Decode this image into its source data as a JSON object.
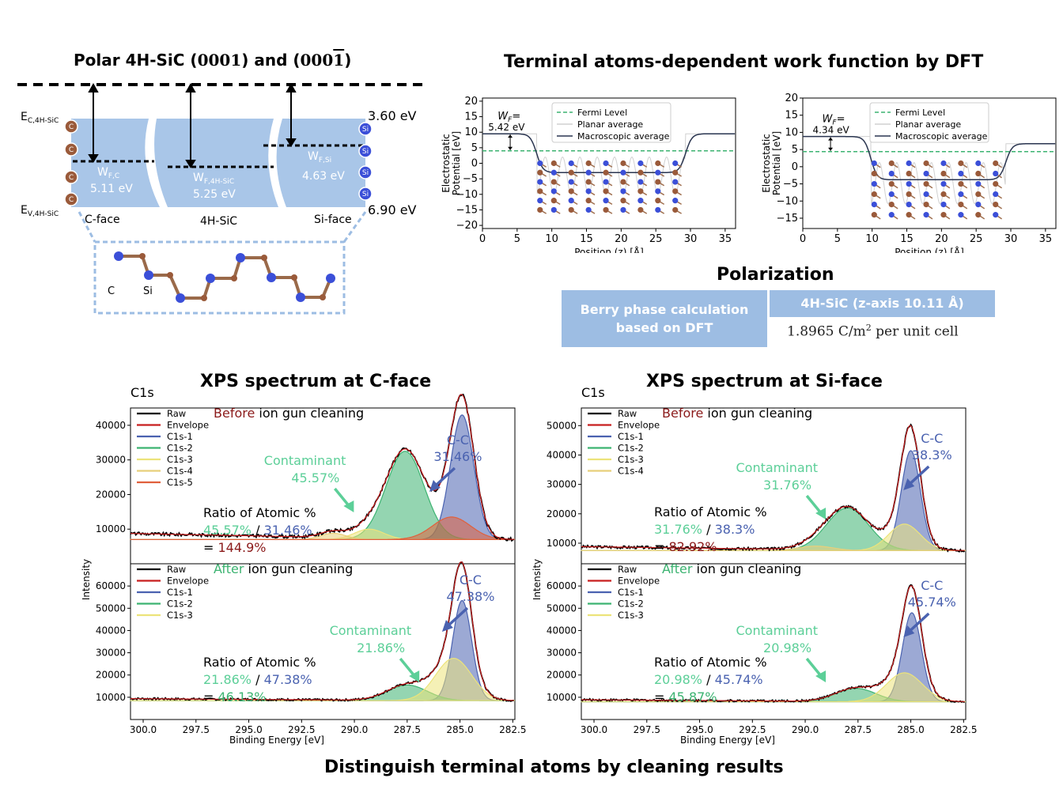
{
  "band": {
    "title_pre": "Polar 4H-SiC (",
    "title_mid": "0001",
    "title_and": ") and (",
    "title_neg": "000",
    "title_bar": "1",
    "title_end": ")",
    "ec": "E",
    "ec_sub": "C,4H-SiC",
    "ev": "E",
    "ev_sub": "V,4H-SiC",
    "top_ev": "3.60 eV",
    "bot_ev": "6.90 eV",
    "wfc": "W",
    "wfc_sub": "F,C",
    "wfc_val": "5.11 eV",
    "wf4h": "W",
    "wf4h_sub": "F,4H-SiC",
    "wf4h_val": "5.25 eV",
    "wfsi": "W",
    "wfsi_sub": "F,Si",
    "wfsi_val": "4.63 eV",
    "cface": "C-face",
    "mid": "4H-SiC",
    "siface": "Si-face",
    "c_atom": "C",
    "si_atom": "Si",
    "atom_c": "C",
    "atom_si": "Si"
  },
  "dft": {
    "title": "Terminal atoms-dependent work function by DFT",
    "ylabel1": "Electrostatic",
    "ylabel2": "Potential [eV]",
    "xlabel": "Position (z) [Å]",
    "legend": [
      "Fermi Level",
      "Planar average",
      "Macroscopic average"
    ],
    "wf_label": "W",
    "wf_sub": "F",
    "wf_eq": "=",
    "left_wf": "5.42 eV",
    "right_wf": "4.34 eV",
    "xticks": [
      "0",
      "5",
      "10",
      "15",
      "20",
      "25",
      "30",
      "35"
    ],
    "left_yticks": [
      "20",
      "15",
      "10",
      "5",
      "0",
      "−5",
      "−10",
      "−15",
      "−20"
    ],
    "right_yticks": [
      "20",
      "15",
      "10",
      "5",
      "0",
      "−5",
      "−10",
      "−15"
    ]
  },
  "polar": {
    "title": "Polarization",
    "left_line1": "Berry phase calculation",
    "left_line2": "based on DFT",
    "right_head": "4H-SiC (z-axis 10.11 Å)",
    "right_val": "1.8965 C/m",
    "right_sup": "2",
    "right_tail": " per unit cell"
  },
  "xps": {
    "c_title": "XPS spectrum at C-face",
    "si_title": "XPS spectrum at Si-face",
    "bottom_title": "Distinguish terminal atoms by cleaning results",
    "c1s": "C1s",
    "ylabel": "Intensity",
    "xlabel": "Binding Energy [eV]",
    "xticks": [
      "300.0",
      "297.5",
      "295.0",
      "292.5",
      "290.0",
      "287.5",
      "285.0",
      "282.5"
    ],
    "before": "Before",
    "after": "After",
    "cleaning": " ion gun cleaning",
    "cc": "C-C",
    "contaminant": "Contaminant",
    "ratio": "Ratio of Atomic %",
    "slash": " / ",
    "eq": "= ",
    "panels": [
      {
        "legend": [
          "Raw",
          "Envelope",
          "C1s-1",
          "C1s-2",
          "C1s-3",
          "C1s-4",
          "C1s-5"
        ],
        "yticks": [
          "40000",
          "30000",
          "20000",
          "10000"
        ],
        "cont": "45.57%",
        "cc": "31.46%",
        "r1": "45.57%",
        "r2": "31.46%",
        "ratio": "144.9%"
      },
      {
        "legend": [
          "Raw",
          "Envelope",
          "C1s-1",
          "C1s-2",
          "C1s-3"
        ],
        "yticks": [
          "60000",
          "50000",
          "40000",
          "30000",
          "20000",
          "10000"
        ],
        "cont": "21.86%",
        "cc": "47.38%",
        "r1": "21.86%",
        "r2": "47.38%",
        "ratio": "46.13%"
      },
      {
        "legend": [
          "Raw",
          "Envelope",
          "C1s-1",
          "C1s-2",
          "C1s-3",
          "C1s-4"
        ],
        "yticks": [
          "50000",
          "40000",
          "30000",
          "20000",
          "10000"
        ],
        "cont": "31.76%",
        "cc": "38.3%",
        "r1": "31.76%",
        "r2": "38.3%",
        "ratio": "82.92%"
      },
      {
        "legend": [
          "Raw",
          "Envelope",
          "C1s-1",
          "C1s-2",
          "C1s-3"
        ],
        "yticks": [
          "60000",
          "50000",
          "40000",
          "30000",
          "20000",
          "10000"
        ],
        "cont": "20.98%",
        "cc": "45.74%",
        "r1": "20.98%",
        "r2": "45.74%",
        "ratio": "45.87%"
      }
    ]
  },
  "colors": {
    "band_fill": "#a9c6e8",
    "c_atom": "#9a5a3a",
    "si_atom": "#3b4fd8",
    "table_blue": "#9dbde3",
    "cc_blue": "#4a62b0",
    "cont_green": "#3cb371",
    "before_red": "#8b1a1a"
  }
}
